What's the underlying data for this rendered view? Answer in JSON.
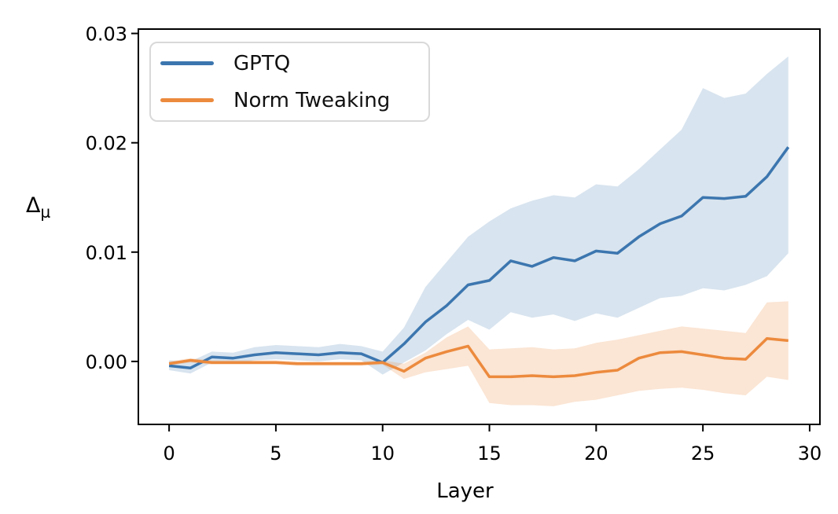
{
  "figure": {
    "x_axis_label": "Layer",
    "y_axis_label_main": "Δ",
    "y_axis_label_sub": "μ"
  },
  "legend": {
    "position": "upper left",
    "items": [
      {
        "label": "GPTQ",
        "color": "#3c76af"
      },
      {
        "label": "Norm Tweaking",
        "color": "#ec8a3d"
      }
    ]
  },
  "chart_data": {
    "type": "line",
    "title": "",
    "xlabel": "Layer",
    "ylabel": "Δμ",
    "grid": false,
    "legend_position": "upper left",
    "xlim": [
      -1.44,
      30.48
    ],
    "ylim": [
      -0.00576,
      0.0304
    ],
    "x_ticks": [
      0,
      5,
      10,
      15,
      20,
      25,
      30
    ],
    "x_tick_labels": [
      "0",
      "5",
      "10",
      "15",
      "20",
      "25",
      "30"
    ],
    "y_ticks": [
      0.0,
      0.01,
      0.02,
      0.03
    ],
    "y_tick_labels": [
      "0.00",
      "0.01",
      "0.02",
      "0.03"
    ],
    "x": [
      0,
      1,
      2,
      3,
      4,
      5,
      6,
      7,
      8,
      9,
      10,
      11,
      12,
      13,
      14,
      15,
      16,
      17,
      18,
      19,
      20,
      21,
      22,
      23,
      24,
      25,
      26,
      27,
      28,
      29
    ],
    "series": [
      {
        "name": "GPTQ",
        "color": "#3c76af",
        "band_alpha": 0.2,
        "values": [
          -0.0004,
          -0.0006,
          0.0004,
          0.0003,
          0.0006,
          0.0008,
          0.0007,
          0.0006,
          0.0008,
          0.0007,
          -0.0001,
          0.0016,
          0.0036,
          0.0051,
          0.007,
          0.0074,
          0.0092,
          0.0087,
          0.0095,
          0.0092,
          0.0101,
          0.0099,
          0.0114,
          0.0126,
          0.0133,
          0.015,
          0.0149,
          0.0151,
          0.0169,
          0.0196
        ],
        "lower": [
          -0.0008,
          -0.0011,
          -0.0001,
          -0.0002,
          0.0001,
          0.0002,
          0.0001,
          0.0,
          0.0002,
          0.0001,
          -0.0012,
          -0.0001,
          0.001,
          0.0025,
          0.0038,
          0.0029,
          0.0045,
          0.004,
          0.0043,
          0.0037,
          0.0044,
          0.004,
          0.0049,
          0.0058,
          0.006,
          0.0067,
          0.0065,
          0.007,
          0.0078,
          0.0099
        ],
        "upper": [
          0.0001,
          0.0,
          0.0009,
          0.0008,
          0.0013,
          0.0015,
          0.0014,
          0.0013,
          0.0016,
          0.0014,
          0.0009,
          0.0031,
          0.0068,
          0.0091,
          0.0114,
          0.0128,
          0.014,
          0.0147,
          0.0152,
          0.015,
          0.0162,
          0.016,
          0.0176,
          0.0194,
          0.0212,
          0.025,
          0.0241,
          0.0245,
          0.0263,
          0.0279
        ]
      },
      {
        "name": "Norm Tweaking",
        "color": "#ec8a3d",
        "band_alpha": 0.22,
        "values": [
          -0.0002,
          0.0001,
          -0.0001,
          -0.0001,
          -0.0001,
          -0.0001,
          -0.0002,
          -0.0002,
          -0.0002,
          -0.0002,
          -0.0001,
          -0.0009,
          0.0003,
          0.0009,
          0.0014,
          -0.0014,
          -0.0014,
          -0.0013,
          -0.0014,
          -0.0013,
          -0.001,
          -0.0008,
          0.0003,
          0.0008,
          0.0009,
          0.0006,
          0.0003,
          0.0002,
          0.0021,
          0.0019
        ],
        "lower": [
          -0.0004,
          -0.0001,
          -0.0003,
          -0.0003,
          -0.0003,
          -0.0003,
          -0.0004,
          -0.0004,
          -0.0004,
          -0.0004,
          -0.0003,
          -0.0016,
          -0.001,
          -0.0007,
          -0.0004,
          -0.0038,
          -0.004,
          -0.004,
          -0.0041,
          -0.0037,
          -0.0035,
          -0.0031,
          -0.0027,
          -0.0025,
          -0.0024,
          -0.0026,
          -0.0029,
          -0.0031,
          -0.0014,
          -0.0017
        ],
        "upper": [
          0.0,
          0.0003,
          0.0001,
          0.0001,
          0.0001,
          0.0001,
          0.0,
          0.0,
          0.0,
          0.0,
          0.0001,
          -0.0002,
          0.0008,
          0.0022,
          0.0032,
          0.0011,
          0.0012,
          0.0013,
          0.0011,
          0.0012,
          0.0017,
          0.002,
          0.0024,
          0.0028,
          0.0032,
          0.003,
          0.0028,
          0.0026,
          0.0054,
          0.0055
        ]
      }
    ]
  }
}
